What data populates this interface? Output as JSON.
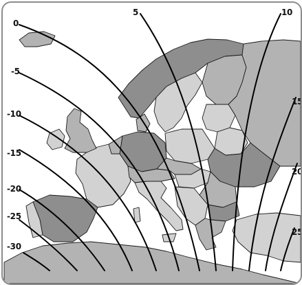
{
  "map": {
    "subject": "Europe",
    "colors": {
      "sea": "#ffffff",
      "land_light": "#d2d2d2",
      "land_mid": "#b3b3b3",
      "land_dark": "#8e8e8e",
      "border": "#1a1a1a",
      "meridian": "#000000",
      "frame": "#8c8c8c"
    },
    "meridians": [
      {
        "value": -30,
        "label": "-30"
      },
      {
        "value": -25,
        "label": "-25"
      },
      {
        "value": -20,
        "label": "-20"
      },
      {
        "value": -15,
        "label": "-15"
      },
      {
        "value": -10,
        "label": "-10"
      },
      {
        "value": -5,
        "label": "-5"
      },
      {
        "value": 0,
        "label": "0"
      },
      {
        "value": 5,
        "label": "5"
      },
      {
        "value": 10,
        "label": "10"
      },
      {
        "value": 15,
        "label": "15"
      },
      {
        "value": 20,
        "label": "20"
      },
      {
        "value": 25,
        "label": "25"
      }
    ]
  }
}
